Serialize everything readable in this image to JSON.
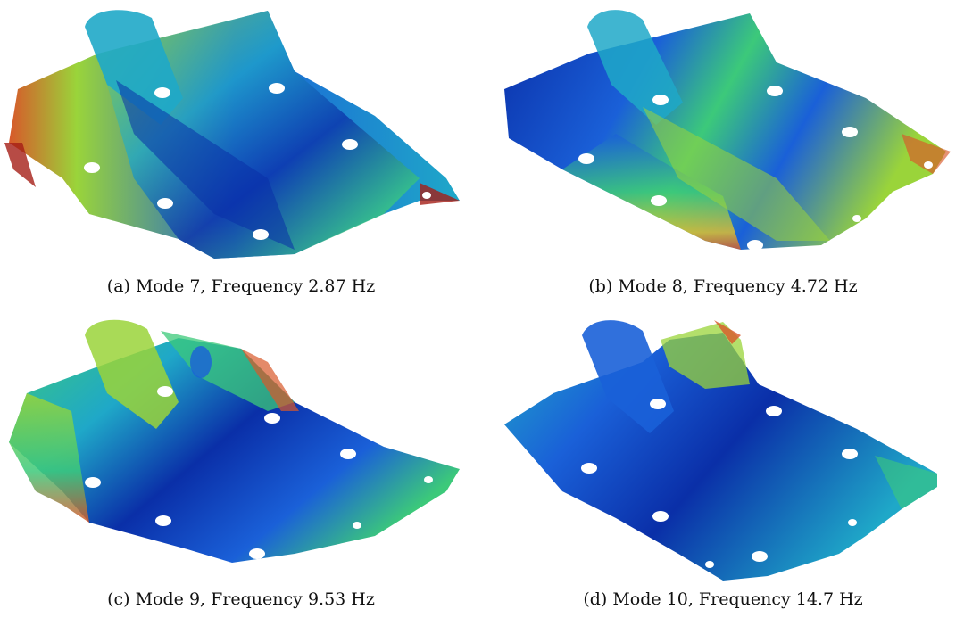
{
  "figure": {
    "panels": [
      {
        "caption": "(a) Mode 7, Frequency 2.87 Hz",
        "palette": [
          "#0a2fa8",
          "#1a60d8",
          "#1fa8c8",
          "#3cc97a",
          "#9ad43a",
          "#e8c12a",
          "#d8582a",
          "#a51e16"
        ]
      },
      {
        "caption": "(b) Mode 8, Frequency 4.72 Hz",
        "palette": [
          "#0a2fa8",
          "#1a60d8",
          "#1fa8c8",
          "#3cc97a",
          "#9ad43a",
          "#e8c12a",
          "#d8582a",
          "#a51e16"
        ]
      },
      {
        "caption": "(c) Mode 9, Frequency 9.53 Hz",
        "palette": [
          "#0a2fa8",
          "#1a60d8",
          "#1fa8c8",
          "#3cc97a",
          "#9ad43a",
          "#e8c12a",
          "#d8582a",
          "#a51e16"
        ]
      },
      {
        "caption": "(d) Mode 10, Frequency 14.7 Hz",
        "palette": [
          "#0a2fa8",
          "#1a60d8",
          "#1fa8c8",
          "#3cc97a",
          "#9ad43a",
          "#e8c12a",
          "#d8582a",
          "#a51e16"
        ]
      }
    ]
  }
}
